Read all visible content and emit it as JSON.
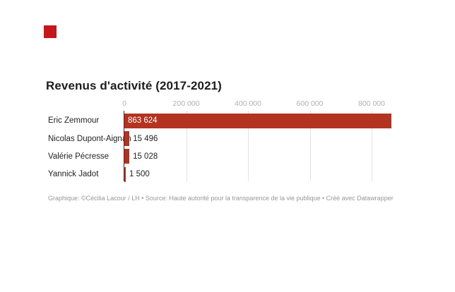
{
  "colors": {
    "page-bg": "#ffffff",
    "logo": "#c4161c",
    "title": "#1d1d1d",
    "bar": "#b23320",
    "grid": "#e2e2e2",
    "axis": "#333333",
    "tick_label": "#b0b0b0",
    "category_label": "#222222",
    "value_inside": "#ffffff",
    "value_outside": "#222222",
    "footer": "#979797"
  },
  "chart_data": {
    "type": "bar",
    "orientation": "horizontal",
    "title": "Revenus d'activité (2017-2021)",
    "categories": [
      "Eric Zemmour",
      "Nicolas Dupont-Aignan",
      "Valérie Pécresse",
      "Yannick Jadot"
    ],
    "values": [
      863624,
      15496,
      15028,
      1500
    ],
    "value_labels": [
      "863 624",
      "15 496",
      "15 028",
      "1 500"
    ],
    "x_ticks": {
      "values": [
        0,
        200000,
        400000,
        600000,
        800000
      ],
      "labels": [
        "0",
        "200 000",
        "400 000",
        "600 000",
        "800 000"
      ]
    },
    "xlim": [
      0,
      914000
    ],
    "grid": true,
    "legend": null
  },
  "footer": {
    "credit": "Graphique: ©Cécilia Lacour / LH • Source: Haute autorité pour la transparence de la vie publique • Créé avec Datawrapper"
  }
}
